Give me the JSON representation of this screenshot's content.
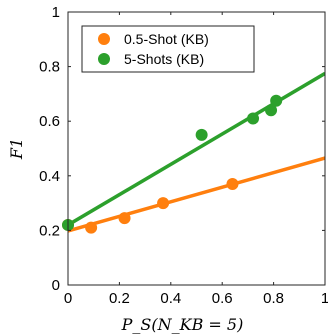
{
  "chart_data": {
    "type": "scatter",
    "title": "",
    "xlabel": "P_S(N_KB = 5)",
    "ylabel": "F1",
    "xlim": [
      0,
      1
    ],
    "ylim": [
      0,
      1
    ],
    "xticks": [
      "0",
      "0.2",
      "0.4",
      "0.6",
      "0.8",
      "1"
    ],
    "yticks": [
      "0",
      "0.2",
      "0.4",
      "0.6",
      "0.8",
      "1"
    ],
    "grid": false,
    "legend_position": "top-left",
    "series": [
      {
        "name": "0.5-Shot (KB)",
        "color": "#ff7f0e",
        "points": [
          [
            0.0,
            0.22
          ],
          [
            0.09,
            0.21
          ],
          [
            0.22,
            0.245
          ],
          [
            0.37,
            0.3
          ],
          [
            0.64,
            0.37
          ]
        ],
        "fit_line": [
          [
            0.0,
            0.198
          ],
          [
            1.0,
            0.465
          ]
        ]
      },
      {
        "name": "5-Shots (KB)",
        "color": "#2ca02c",
        "points": [
          [
            0.0,
            0.22
          ],
          [
            0.52,
            0.55
          ],
          [
            0.72,
            0.61
          ],
          [
            0.79,
            0.64
          ],
          [
            0.81,
            0.675
          ]
        ],
        "fit_line": [
          [
            0.0,
            0.22
          ],
          [
            1.0,
            0.775
          ]
        ]
      }
    ]
  }
}
